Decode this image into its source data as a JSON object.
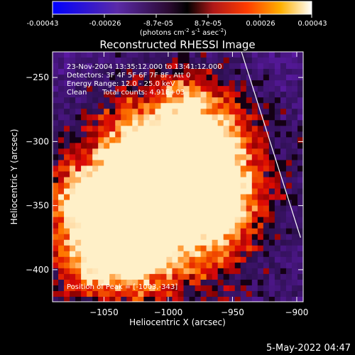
{
  "colorbar": {
    "tick_labels": [
      "-0.00043",
      "-0.00026",
      "-8.7e-05",
      "8.7e-05",
      "0.00026",
      "0.00043"
    ],
    "unit_main": "(photons cm",
    "unit_sup1": "-2",
    "unit_mid": " s",
    "unit_sup2": "-1",
    "unit_mid2": " asec",
    "unit_sup3": "-2",
    "unit_end": ")",
    "range": [
      -0.00043,
      0.00043
    ]
  },
  "title": "Reconstructed RHESSI Image",
  "annotations": {
    "line1": "23-Nov-2004 13:35:12.000 to 13:41:12.000",
    "line2": "Detectors: 3F 4F 5F 6F 7F 8F, Att 0",
    "line3": "Energy Range: 12.0 - 25.0 keV",
    "line4_a": "Clean",
    "line4_b": "Total counts: 4.91E+03",
    "peak": "Position of Peak = [-1003,-343]"
  },
  "footer": {
    "date": "5-May-2022 04:47"
  },
  "colors": {
    "background": "#000000",
    "text": "#ffffff",
    "colormap": "hot-blue-purple"
  },
  "chart_data": {
    "type": "heatmap",
    "title": "Reconstructed RHESSI Image",
    "xlabel": "Heliocentric X (arcsec)",
    "ylabel": "Heliocentric Y (arcsec)",
    "xlim": [
      -1090,
      -895
    ],
    "ylim": [
      -425,
      -230
    ],
    "x_ticks": [
      -1050,
      -1000,
      -950,
      -900
    ],
    "y_ticks": [
      -250,
      -300,
      -350,
      -400
    ],
    "x_tick_labels": [
      "−1050",
      "−1000",
      "−950",
      "−900"
    ],
    "y_tick_labels": [
      "−250",
      "−300",
      "−350",
      "−400"
    ],
    "peak_position": [
      -1003,
      -343
    ],
    "limb_line": [
      [
        -943,
        -230
      ],
      [
        -897,
        -375
      ]
    ]
  }
}
